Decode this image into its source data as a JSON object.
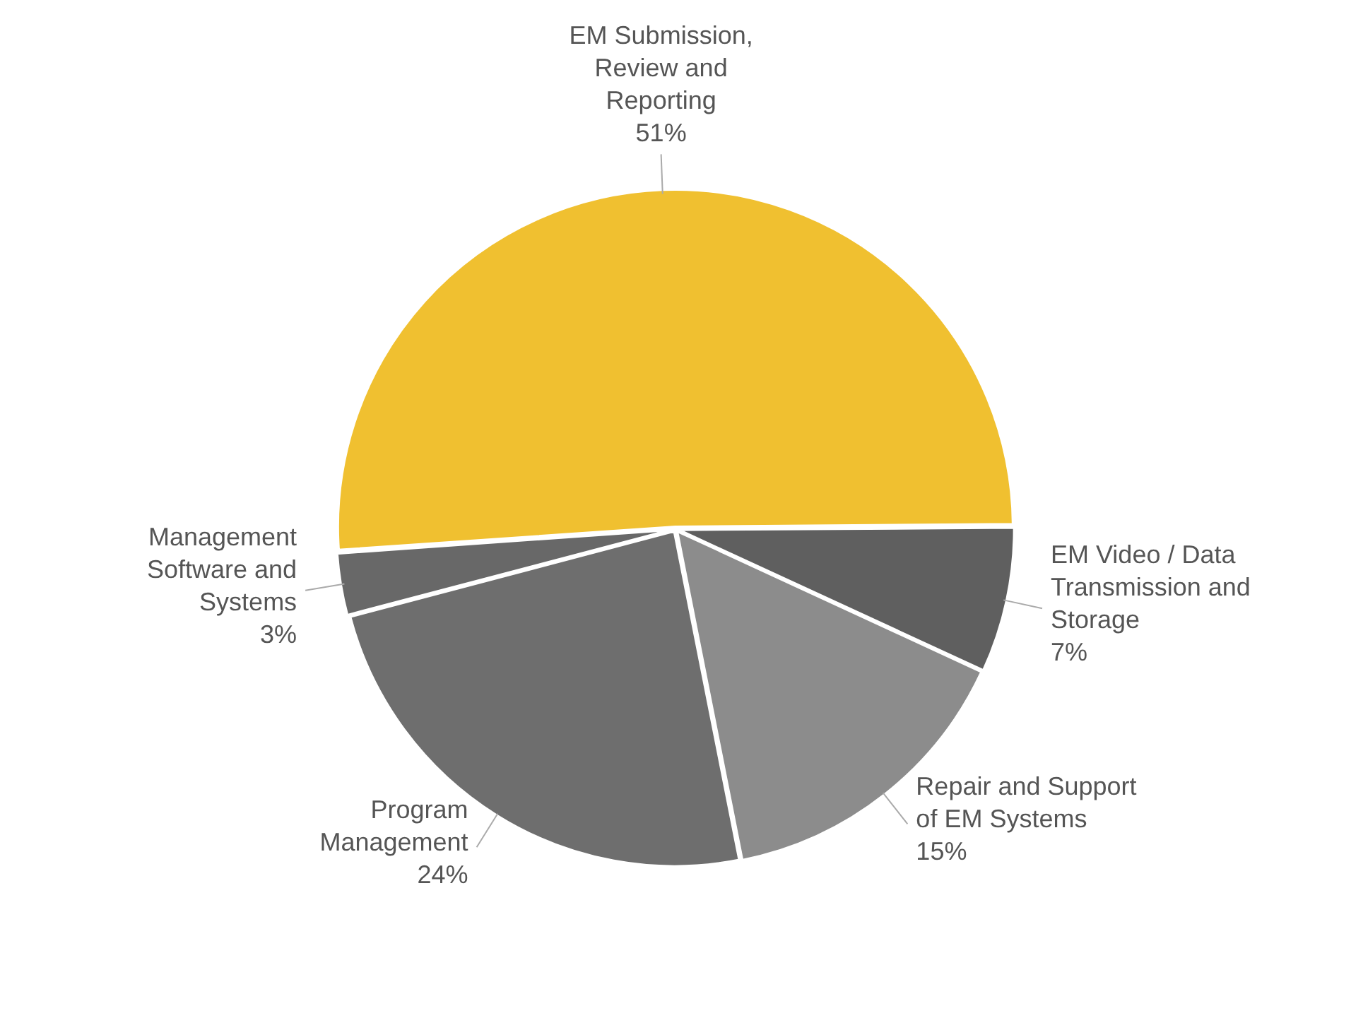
{
  "chart_data": {
    "type": "pie",
    "categories": [
      "EM Submission, Review and Reporting",
      "EM Video / Data Transmission and Storage",
      "Repair and Support of EM Systems",
      "Program Management",
      "Management Software and Systems"
    ],
    "values": [
      51,
      7,
      15,
      24,
      3
    ],
    "value_labels": [
      "51%",
      "7%",
      "15%",
      "24%",
      "3%"
    ],
    "colors": [
      "#f0c030",
      "#5f5f5f",
      "#8c8c8c",
      "#6e6e6e",
      "#686868"
    ],
    "legend": false
  }
}
